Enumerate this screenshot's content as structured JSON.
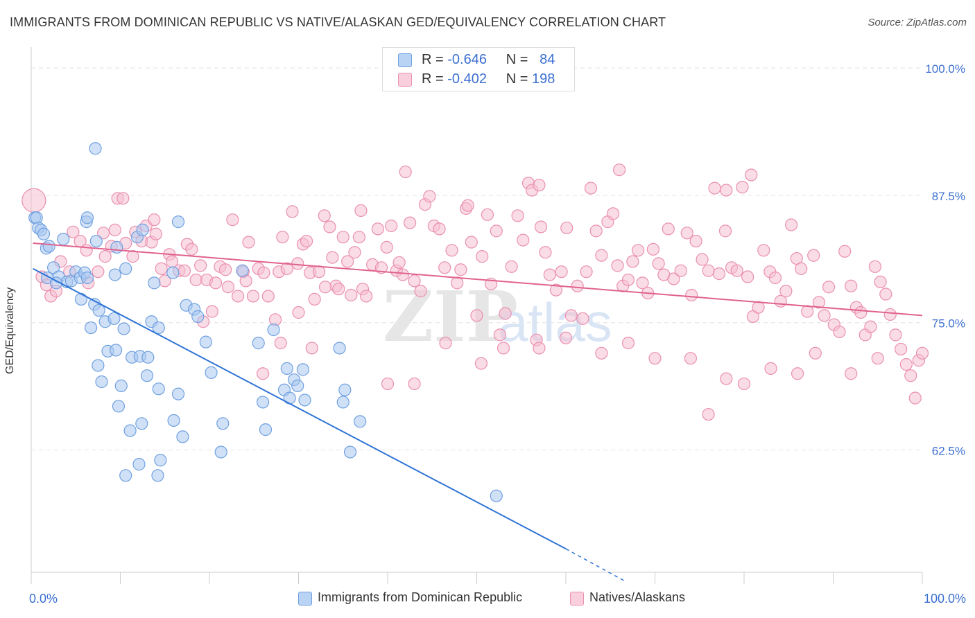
{
  "header": {
    "title": "IMMIGRANTS FROM DOMINICAN REPUBLIC VS NATIVE/ALASKAN GED/EQUIVALENCY CORRELATION CHART",
    "source": "Source: ZipAtlas.com"
  },
  "legend_top": {
    "rows": [
      {
        "r_label": "R = ",
        "r_value": "-0.646",
        "n_label": "N = ",
        "n_value": "84"
      },
      {
        "r_label": "R = ",
        "r_value": "-0.402",
        "n_label": "N = ",
        "n_value": "198"
      }
    ]
  },
  "legend_bottom": {
    "items": [
      "Immigrants from Dominican Republic",
      "Natives/Alaskans"
    ]
  },
  "watermark": {
    "zip": "ZIP",
    "atlas": "atlas"
  },
  "colors": {
    "blue_fill": "#a9c8f0",
    "blue_stroke": "#6fa0e0",
    "blue_line": "#2f74d6",
    "pink_fill": "#f6c0d2",
    "pink_stroke": "#ea8fb0",
    "pink_line": "#e0628f",
    "axis_label": "#3b6fd1"
  },
  "chart_data": {
    "type": "scatter",
    "title": "IMMIGRANTS FROM DOMINICAN REPUBLIC VS NATIVE/ALASKAN GED/EQUIVALENCY CORRELATION CHART",
    "xlabel": "",
    "ylabel": "GED/Equivalency",
    "xlim": [
      0,
      100
    ],
    "ylim": [
      50.5,
      101.5
    ],
    "x_tick_labels": [
      "0.0%",
      "100.0%"
    ],
    "y_ticks": [
      62.5,
      75.0,
      87.5,
      100.0
    ],
    "y_tick_labels": [
      "62.5%",
      "75.0%",
      "87.5%",
      "100.0%"
    ],
    "grid": true,
    "legend_position": "top-center",
    "series": [
      {
        "name": "Immigrants from Dominican Republic",
        "color": "#a9c8f0",
        "r": -0.646,
        "n": 84,
        "trend": {
          "x": [
            0.2,
            60.0
          ],
          "y": [
            80.3,
            52.8
          ],
          "dashed_to": [
            66.7,
            49.6
          ]
        },
        "points": [
          [
            0.4,
            85.3
          ],
          [
            0.6,
            85.3
          ],
          [
            0.8,
            84.3
          ],
          [
            1.1,
            84.1
          ],
          [
            1.4,
            83.7
          ],
          [
            1.7,
            82.3
          ],
          [
            2.0,
            82.5
          ],
          [
            2.5,
            80.4
          ],
          [
            3.1,
            79.5
          ],
          [
            4.0,
            79.0
          ],
          [
            4.5,
            79.1
          ],
          [
            5.0,
            80.0
          ],
          [
            5.5,
            79.4
          ],
          [
            6.0,
            79.9
          ],
          [
            6.3,
            79.4
          ],
          [
            1.8,
            79.4
          ],
          [
            2.8,
            78.9
          ],
          [
            7.3,
            83.0
          ],
          [
            3.6,
            83.2
          ],
          [
            5.6,
            77.3
          ],
          [
            6.2,
            84.9
          ],
          [
            7.1,
            76.8
          ],
          [
            7.6,
            76.2
          ],
          [
            8.3,
            75.1
          ],
          [
            9.3,
            75.4
          ],
          [
            6.7,
            74.5
          ],
          [
            10.4,
            74.4
          ],
          [
            8.6,
            72.2
          ],
          [
            9.5,
            72.3
          ],
          [
            11.3,
            71.6
          ],
          [
            12.2,
            71.7
          ],
          [
            13.1,
            71.6
          ],
          [
            13.0,
            69.8
          ],
          [
            13.5,
            75.1
          ],
          [
            14.3,
            74.5
          ],
          [
            11.9,
            83.4
          ],
          [
            12.5,
            84.1
          ],
          [
            9.4,
            79.7
          ],
          [
            10.6,
            80.3
          ],
          [
            13.8,
            78.9
          ],
          [
            15.9,
            79.9
          ],
          [
            17.4,
            76.7
          ],
          [
            18.3,
            76.3
          ],
          [
            18.7,
            75.6
          ],
          [
            19.6,
            73.1
          ],
          [
            20.2,
            70.1
          ],
          [
            7.5,
            70.8
          ],
          [
            7.9,
            69.2
          ],
          [
            10.1,
            68.8
          ],
          [
            14.3,
            68.5
          ],
          [
            16.5,
            68.0
          ],
          [
            9.8,
            66.8
          ],
          [
            11.1,
            64.4
          ],
          [
            12.4,
            65.1
          ],
          [
            16.0,
            65.4
          ],
          [
            17.0,
            63.8
          ],
          [
            21.3,
            62.3
          ],
          [
            21.5,
            65.1
          ],
          [
            26.0,
            67.2
          ],
          [
            26.3,
            64.5
          ],
          [
            23.7,
            80.1
          ],
          [
            25.5,
            73.0
          ],
          [
            27.2,
            74.3
          ],
          [
            28.4,
            68.4
          ],
          [
            28.7,
            70.5
          ],
          [
            29.0,
            67.6
          ],
          [
            29.5,
            69.4
          ],
          [
            29.9,
            68.8
          ],
          [
            30.5,
            70.4
          ],
          [
            30.7,
            67.4
          ],
          [
            34.6,
            72.5
          ],
          [
            35.0,
            67.2
          ],
          [
            35.2,
            68.4
          ],
          [
            35.8,
            62.3
          ],
          [
            36.9,
            65.3
          ],
          [
            12.1,
            61.1
          ],
          [
            14.5,
            61.5
          ],
          [
            10.6,
            60.0
          ],
          [
            14.2,
            60.0
          ],
          [
            52.2,
            58.0
          ],
          [
            7.2,
            92.1
          ],
          [
            6.3,
            85.3
          ],
          [
            9.6,
            82.4
          ],
          [
            16.5,
            84.9
          ]
        ]
      },
      {
        "name": "Natives/Alaskans",
        "color": "#f6c0d2",
        "r": -0.402,
        "n": 198,
        "trend": {
          "x": [
            0.2,
            100.0
          ],
          "y": [
            82.8,
            75.7
          ]
        },
        "points": [
          [
            0.3,
            87.0
          ],
          [
            1.2,
            79.5
          ],
          [
            1.7,
            78.7
          ],
          [
            2.2,
            77.6
          ],
          [
            2.8,
            78.1
          ],
          [
            3.3,
            81.0
          ],
          [
            4.3,
            80.0
          ],
          [
            4.7,
            83.9
          ],
          [
            5.5,
            83.0
          ],
          [
            6.2,
            82.1
          ],
          [
            6.4,
            78.9
          ],
          [
            7.5,
            80.0
          ],
          [
            8.1,
            83.8
          ],
          [
            8.3,
            81.5
          ],
          [
            9.0,
            82.5
          ],
          [
            9.4,
            84.1
          ],
          [
            9.7,
            87.2
          ],
          [
            10.3,
            87.2
          ],
          [
            10.6,
            82.8
          ],
          [
            11.4,
            81.5
          ],
          [
            11.7,
            83.9
          ],
          [
            12.4,
            83.0
          ],
          [
            12.9,
            84.5
          ],
          [
            13.5,
            82.9
          ],
          [
            13.8,
            85.1
          ],
          [
            14.0,
            83.7
          ],
          [
            14.6,
            80.3
          ],
          [
            15.0,
            79.1
          ],
          [
            15.5,
            81.7
          ],
          [
            15.8,
            81.0
          ],
          [
            16.6,
            80.1
          ],
          [
            17.2,
            80.1
          ],
          [
            17.5,
            82.7
          ],
          [
            18.0,
            82.2
          ],
          [
            18.5,
            79.2
          ],
          [
            19.0,
            80.6
          ],
          [
            19.3,
            75.1
          ],
          [
            19.7,
            79.2
          ],
          [
            20.3,
            76.1
          ],
          [
            20.7,
            78.9
          ],
          [
            21.2,
            80.5
          ],
          [
            21.8,
            80.2
          ],
          [
            22.1,
            78.5
          ],
          [
            22.6,
            85.1
          ],
          [
            23.2,
            77.6
          ],
          [
            23.8,
            80.0
          ],
          [
            24.1,
            79.1
          ],
          [
            24.4,
            82.9
          ],
          [
            24.9,
            77.6
          ],
          [
            25.5,
            80.3
          ],
          [
            26.1,
            79.9
          ],
          [
            26.6,
            77.6
          ],
          [
            27.4,
            75.3
          ],
          [
            27.8,
            80.0
          ],
          [
            28.2,
            83.4
          ],
          [
            28.7,
            80.3
          ],
          [
            29.3,
            85.9
          ],
          [
            29.9,
            80.8
          ],
          [
            30.5,
            82.7
          ],
          [
            30.9,
            83.0
          ],
          [
            31.3,
            79.9
          ],
          [
            31.8,
            77.3
          ],
          [
            32.3,
            80.0
          ],
          [
            32.9,
            85.5
          ],
          [
            33.5,
            84.4
          ],
          [
            33.8,
            81.4
          ],
          [
            34.2,
            78.6
          ],
          [
            34.5,
            78.3
          ],
          [
            35.0,
            83.4
          ],
          [
            35.5,
            81.0
          ],
          [
            35.9,
            77.7
          ],
          [
            36.3,
            81.9
          ],
          [
            36.8,
            83.4
          ],
          [
            37.2,
            78.3
          ],
          [
            37.6,
            77.6
          ],
          [
            38.3,
            80.7
          ],
          [
            38.9,
            84.2
          ],
          [
            39.3,
            80.4
          ],
          [
            39.9,
            82.4
          ],
          [
            40.4,
            84.5
          ],
          [
            41.0,
            80.1
          ],
          [
            41.3,
            80.9
          ],
          [
            41.7,
            79.7
          ],
          [
            42.5,
            84.8
          ],
          [
            43.0,
            79.1
          ],
          [
            43.7,
            78.1
          ],
          [
            44.2,
            86.6
          ],
          [
            44.7,
            87.4
          ],
          [
            45.2,
            84.5
          ],
          [
            45.8,
            84.2
          ],
          [
            46.4,
            80.4
          ],
          [
            47.2,
            82.1
          ],
          [
            47.8,
            78.9
          ],
          [
            48.2,
            80.2
          ],
          [
            48.8,
            86.2
          ],
          [
            49.4,
            82.9
          ],
          [
            50.0,
            75.7
          ],
          [
            50.6,
            81.5
          ],
          [
            51.2,
            85.6
          ],
          [
            51.6,
            78.8
          ],
          [
            52.2,
            84.0
          ],
          [
            52.6,
            73.8
          ],
          [
            53.2,
            75.9
          ],
          [
            53.9,
            80.5
          ],
          [
            54.6,
            85.5
          ],
          [
            55.2,
            83.1
          ],
          [
            55.8,
            88.7
          ],
          [
            56.2,
            88.0
          ],
          [
            56.7,
            73.3
          ],
          [
            57.2,
            84.4
          ],
          [
            57.7,
            81.9
          ],
          [
            58.2,
            79.7
          ],
          [
            58.9,
            78.2
          ],
          [
            59.5,
            80.0
          ],
          [
            60.1,
            84.3
          ],
          [
            60.6,
            75.7
          ],
          [
            61.3,
            78.6
          ],
          [
            61.9,
            75.4
          ],
          [
            62.3,
            80.0
          ],
          [
            62.8,
            88.2
          ],
          [
            63.4,
            84.0
          ],
          [
            64.0,
            81.6
          ],
          [
            64.7,
            84.9
          ],
          [
            65.3,
            85.7
          ],
          [
            65.8,
            80.6
          ],
          [
            66.4,
            78.6
          ],
          [
            67.0,
            79.2
          ],
          [
            67.5,
            81.0
          ],
          [
            68.1,
            82.1
          ],
          [
            68.6,
            78.9
          ],
          [
            69.2,
            77.9
          ],
          [
            69.8,
            82.2
          ],
          [
            70.4,
            80.8
          ],
          [
            71.0,
            79.7
          ],
          [
            71.5,
            84.2
          ],
          [
            72.1,
            79.3
          ],
          [
            72.9,
            80.1
          ],
          [
            73.6,
            83.8
          ],
          [
            74.1,
            77.7
          ],
          [
            74.6,
            83.0
          ],
          [
            75.3,
            81.2
          ],
          [
            76.0,
            80.1
          ],
          [
            76.7,
            88.2
          ],
          [
            77.2,
            79.8
          ],
          [
            77.9,
            84.0
          ],
          [
            78.6,
            80.4
          ],
          [
            79.2,
            80.1
          ],
          [
            79.8,
            88.3
          ],
          [
            80.4,
            79.5
          ],
          [
            81.0,
            75.6
          ],
          [
            81.6,
            76.5
          ],
          [
            82.2,
            82.1
          ],
          [
            82.9,
            80.0
          ],
          [
            83.5,
            79.4
          ],
          [
            84.1,
            77.1
          ],
          [
            84.7,
            78.1
          ],
          [
            85.3,
            84.6
          ],
          [
            85.9,
            81.3
          ],
          [
            86.4,
            80.3
          ],
          [
            87.1,
            76.1
          ],
          [
            87.8,
            81.6
          ],
          [
            88.4,
            77.0
          ],
          [
            89.0,
            75.7
          ],
          [
            89.5,
            78.5
          ],
          [
            90.1,
            74.8
          ],
          [
            90.7,
            74.1
          ],
          [
            91.3,
            82.0
          ],
          [
            92.0,
            78.6
          ],
          [
            92.6,
            76.5
          ],
          [
            93.1,
            76.0
          ],
          [
            93.6,
            73.8
          ],
          [
            94.2,
            74.6
          ],
          [
            94.7,
            80.5
          ],
          [
            95.3,
            79.0
          ],
          [
            95.9,
            77.8
          ],
          [
            96.4,
            75.8
          ],
          [
            97.0,
            73.8
          ],
          [
            97.6,
            72.4
          ],
          [
            98.2,
            70.9
          ],
          [
            98.7,
            69.8
          ],
          [
            99.2,
            67.6
          ],
          [
            99.6,
            71.3
          ],
          [
            100.0,
            72.0
          ],
          [
            80.8,
            89.5
          ],
          [
            78.0,
            88.0
          ],
          [
            66.0,
            90.0
          ],
          [
            57.0,
            88.5
          ],
          [
            49.0,
            86.5
          ],
          [
            42.0,
            89.8
          ],
          [
            37.0,
            86.0
          ],
          [
            33.0,
            78.5
          ],
          [
            26.0,
            70.0
          ],
          [
            31.5,
            72.5
          ],
          [
            40.0,
            69.0
          ],
          [
            43.0,
            69.0
          ],
          [
            46.5,
            73.0
          ],
          [
            50.5,
            71.0
          ],
          [
            53.0,
            72.5
          ],
          [
            57.0,
            72.5
          ],
          [
            60.0,
            73.5
          ],
          [
            64.0,
            72.0
          ],
          [
            67.0,
            73.0
          ],
          [
            70.0,
            71.5
          ],
          [
            74.0,
            71.5
          ],
          [
            78.0,
            69.5
          ],
          [
            80.0,
            69.0
          ],
          [
            83.0,
            70.5
          ],
          [
            86.0,
            70.0
          ],
          [
            88.0,
            72.0
          ],
          [
            92.0,
            70.0
          ],
          [
            95.0,
            71.5
          ],
          [
            76.0,
            66.0
          ],
          [
            30.0,
            76.0
          ],
          [
            28.0,
            73.0
          ]
        ]
      }
    ]
  }
}
